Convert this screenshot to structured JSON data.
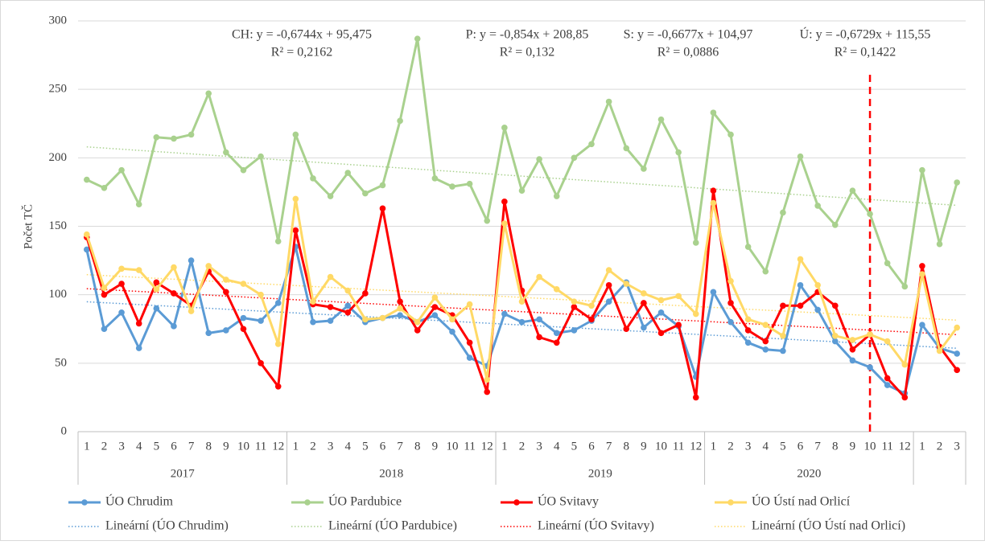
{
  "chart_data": {
    "type": "line",
    "y_label": "Počet TČ",
    "ylim": [
      0,
      300
    ],
    "yticks": [
      0,
      50,
      100,
      150,
      200,
      250,
      300
    ],
    "grid": true,
    "categories": [
      "1",
      "2",
      "3",
      "4",
      "5",
      "6",
      "7",
      "8",
      "9",
      "10",
      "11",
      "12",
      "1",
      "2",
      "3",
      "4",
      "5",
      "6",
      "7",
      "8",
      "9",
      "10",
      "11",
      "12",
      "1",
      "2",
      "3",
      "4",
      "5",
      "6",
      "7",
      "8",
      "9",
      "10",
      "11",
      "12",
      "1",
      "2",
      "3",
      "4",
      "5",
      "6",
      "7",
      "8",
      "9",
      "10",
      "11",
      "12",
      "1",
      "2",
      "3"
    ],
    "category_groups": [
      {
        "label": "2017",
        "size": 12
      },
      {
        "label": "2018",
        "size": 12
      },
      {
        "label": "2019",
        "size": 12
      },
      {
        "label": "2020",
        "size": 12
      },
      {
        "label": null,
        "size": 3
      }
    ],
    "series": [
      {
        "name": "ÚO Chrudim",
        "color": "#5b9bd5",
        "values": [
          133,
          75,
          87,
          61,
          90,
          77,
          125,
          72,
          74,
          83,
          81,
          94,
          135,
          80,
          81,
          92,
          80,
          83,
          85,
          80,
          85,
          73,
          54,
          48,
          86,
          80,
          82,
          72,
          74,
          81,
          95,
          109,
          76,
          87,
          77,
          40,
          102,
          80,
          65,
          60,
          59,
          107,
          89,
          66,
          52,
          47,
          34,
          28,
          78,
          61,
          57
        ]
      },
      {
        "name": "ÚO Pardubice",
        "color": "#a9d18e",
        "values": [
          184,
          178,
          191,
          166,
          215,
          214,
          217,
          247,
          204,
          191,
          201,
          139,
          217,
          185,
          172,
          189,
          174,
          180,
          227,
          287,
          185,
          179,
          181,
          154,
          222,
          176,
          199,
          172,
          200,
          210,
          241,
          207,
          192,
          228,
          204,
          138,
          233,
          217,
          135,
          117,
          160,
          201,
          165,
          151,
          176,
          159,
          123,
          106,
          191,
          137,
          182
        ]
      },
      {
        "name": "ÚO Svitavy",
        "color": "#ff0000",
        "values": [
          142,
          100,
          108,
          79,
          109,
          101,
          92,
          117,
          102,
          75,
          50,
          33,
          147,
          93,
          91,
          87,
          101,
          163,
          95,
          74,
          91,
          85,
          65,
          29,
          168,
          103,
          69,
          65,
          91,
          82,
          107,
          75,
          94,
          72,
          78,
          25,
          176,
          94,
          74,
          66,
          92,
          92,
          102,
          92,
          60,
          71,
          39,
          25,
          121,
          62,
          45
        ]
      },
      {
        "name": "ÚO Ústí nad Orlicí",
        "color": "#ffd966",
        "values": [
          144,
          105,
          119,
          118,
          104,
          120,
          88,
          121,
          111,
          108,
          100,
          64,
          170,
          95,
          113,
          103,
          82,
          83,
          90,
          80,
          98,
          82,
          93,
          38,
          152,
          95,
          113,
          104,
          95,
          92,
          118,
          108,
          101,
          96,
          99,
          86,
          167,
          110,
          82,
          78,
          70,
          126,
          107,
          70,
          67,
          71,
          66,
          49,
          115,
          59,
          76
        ]
      }
    ],
    "trendlines": [
      {
        "name": "Lineární (ÚO Chrudim)",
        "series": 0,
        "equation": "CH: y = -0,6744x + 95,475",
        "r2": "R² = 0,2162"
      },
      {
        "name": "Lineární (ÚO Pardubice)",
        "series": 1,
        "equation": "P: y = -0,854x + 208,85",
        "r2": "R² = 0,132"
      },
      {
        "name": "Lineární (ÚO Svitavy)",
        "series": 2,
        "equation": "S: y = -0,6677x + 104,97",
        "r2": "R² = 0,0886"
      },
      {
        "name": "Lineární (ÚO Ústí nad Orlicí)",
        "series": 3,
        "equation": "Ú: y = -0,6729x + 115,55",
        "r2": "R² = 0,1422"
      }
    ],
    "reference_line": {
      "category_index": 45,
      "color": "#ff0000",
      "style": "dashed"
    }
  }
}
